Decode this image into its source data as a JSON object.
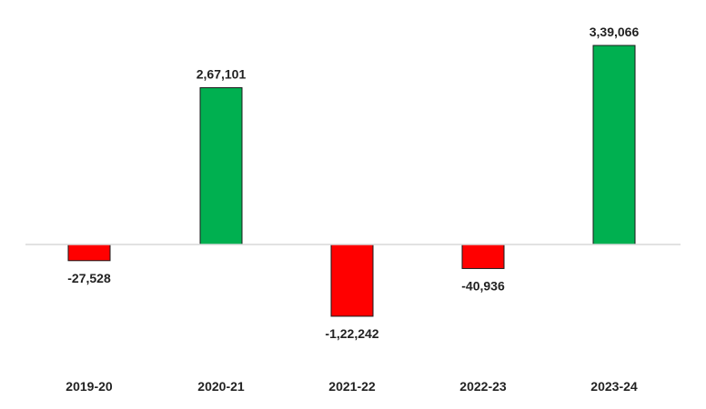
{
  "chart_data": {
    "type": "bar",
    "title": "",
    "xlabel": "",
    "ylabel": "",
    "categories": [
      "2019-20",
      "2020-21",
      "2021-22",
      "2022-23",
      "2023-24"
    ],
    "values": [
      -27528,
      267101,
      -122242,
      -40936,
      339066
    ],
    "data_labels": [
      "-27,528",
      "2,67,101",
      "-1,22,242",
      "-40,936",
      "3,39,066"
    ],
    "ylim": [
      -122242,
      339066
    ],
    "grid": false,
    "legend": "none",
    "colors": {
      "positive": "#00b050",
      "negative": "#ff0000",
      "outline": "#1a1a1a",
      "axis": "#d9d9d9"
    }
  }
}
